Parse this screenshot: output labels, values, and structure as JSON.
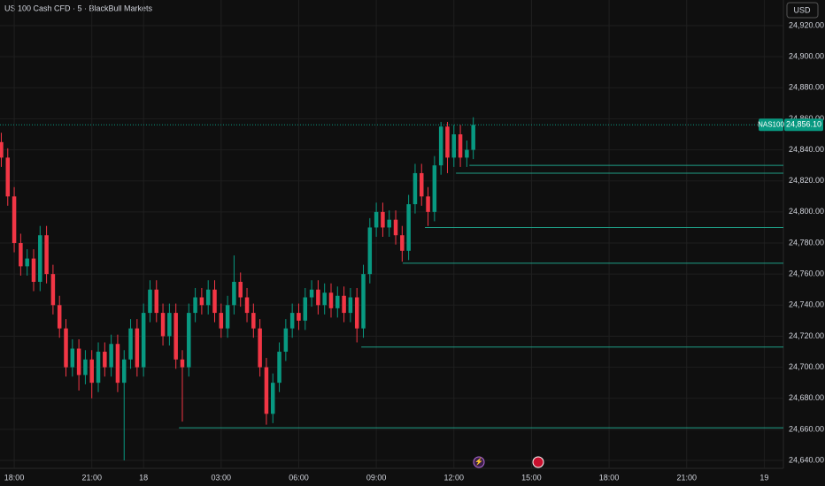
{
  "chart_data": {
    "type": "candlestick",
    "title": "US 100 Cash CFD · 5 · BlackBull Markets",
    "currency": "USD",
    "symbol_label": "NAS100",
    "last_price": {
      "value": 24856.1,
      "label": "24,856.10"
    },
    "up_color": "#089981",
    "down_color": "#f23645",
    "level_color": "#1f9e86",
    "grid": true,
    "xlim": [
      -0.55,
      29.74
    ],
    "xticks": [
      {
        "value": 0,
        "label": "18:00"
      },
      {
        "value": 3,
        "label": "21:00"
      },
      {
        "value": 5,
        "label": "18"
      },
      {
        "value": 8,
        "label": "03:00"
      },
      {
        "value": 11,
        "label": "06:00"
      },
      {
        "value": 14,
        "label": "09:00"
      },
      {
        "value": 17,
        "label": "12:00"
      },
      {
        "value": 20,
        "label": "15:00"
      },
      {
        "value": 23,
        "label": "18:00"
      },
      {
        "value": 26,
        "label": "21:00"
      },
      {
        "value": 29,
        "label": "19"
      }
    ],
    "ylim": [
      24634.9,
      24936.5
    ],
    "yticks": [
      {
        "value": 24640,
        "label": "24,640.00"
      },
      {
        "value": 24660,
        "label": "24,660.00"
      },
      {
        "value": 24680,
        "label": "24,680.00"
      },
      {
        "value": 24700,
        "label": "24,700.00"
      },
      {
        "value": 24720,
        "label": "24,720.00"
      },
      {
        "value": 24740,
        "label": "24,740.00"
      },
      {
        "value": 24760,
        "label": "24,760.00"
      },
      {
        "value": 24780,
        "label": "24,780.00"
      },
      {
        "value": 24800,
        "label": "24,800.00"
      },
      {
        "value": 24820,
        "label": "24,820.00"
      },
      {
        "value": 24840,
        "label": "24,840.00"
      },
      {
        "value": 24860,
        "label": "24,860.00"
      },
      {
        "value": 24880,
        "label": "24,880.00"
      },
      {
        "value": 24900,
        "label": "24,900.00"
      },
      {
        "value": 24920,
        "label": "24,920.00"
      }
    ],
    "x": [
      -0.5,
      -0.25,
      0,
      0.25,
      0.5,
      0.75,
      1,
      1.25,
      1.5,
      1.75,
      2,
      2.25,
      2.5,
      2.75,
      3,
      3.25,
      3.5,
      3.75,
      4,
      4.25,
      4.5,
      4.75,
      5,
      5.25,
      5.5,
      5.75,
      6,
      6.25,
      6.5,
      6.75,
      7,
      7.25,
      7.5,
      7.75,
      8,
      8.25,
      8.5,
      8.75,
      9,
      9.25,
      9.5,
      9.75,
      10,
      10.25,
      10.5,
      10.75,
      11,
      11.25,
      11.5,
      11.75,
      12,
      12.25,
      12.5,
      12.75,
      13,
      13.25,
      13.5,
      13.75,
      14,
      14.25,
      14.5,
      14.75,
      15,
      15.25,
      15.5,
      15.75,
      16,
      16.25,
      16.5,
      16.75,
      17,
      17.25,
      17.5,
      17.75
    ],
    "open": [
      24845,
      24835,
      24810,
      24780,
      24765,
      24770,
      24755,
      24785,
      24760,
      24740,
      24725,
      24700,
      24712,
      24695,
      24705,
      24690,
      24710,
      24700,
      24715,
      24690,
      24705,
      24725,
      24700,
      24735,
      24750,
      24735,
      24720,
      24735,
      24705,
      24700,
      24735,
      24745,
      24740,
      24750,
      24735,
      24725,
      24740,
      24755,
      24745,
      24735,
      24725,
      24700,
      24670,
      24690,
      24710,
      24725,
      24735,
      24730,
      24745,
      24750,
      24740,
      24748,
      24738,
      24746,
      24735,
      24745,
      24725,
      24760,
      24790,
      24800,
      24790,
      24795,
      24785,
      24775,
      24805,
      24825,
      24810,
      24800,
      24830,
      24855,
      24835,
      24850,
      24835,
      24840
    ],
    "high": [
      24851,
      24841,
      24816,
      24786,
      24776,
      24776,
      24791,
      24791,
      24766,
      24746,
      24731,
      24718,
      24718,
      24711,
      24711,
      24716,
      24716,
      24721,
      24721,
      24711,
      24731,
      24731,
      24741,
      24756,
      24756,
      24741,
      24741,
      24741,
      24711,
      24741,
      24751,
      24751,
      24756,
      24756,
      24741,
      24746,
      24772,
      24761,
      24751,
      24741,
      24731,
      24706,
      24696,
      24716,
      24731,
      24741,
      24741,
      24751,
      24756,
      24756,
      24754,
      24754,
      24752,
      24752,
      24751,
      24751,
      24766,
      24796,
      24806,
      24806,
      24801,
      24801,
      24791,
      24811,
      24831,
      24831,
      24816,
      24836,
      24858,
      24858,
      24856,
      24856,
      24846,
      24861
    ],
    "low": [
      24829,
      24804,
      24774,
      24759,
      24759,
      24749,
      24749,
      24754,
      24734,
      24719,
      24694,
      24694,
      24685,
      24689,
      24680,
      24684,
      24694,
      24694,
      24684,
      24640,
      24699,
      24694,
      24694,
      24729,
      24729,
      24714,
      24714,
      24699,
      24665,
      24694,
      24729,
      24734,
      24734,
      24729,
      24719,
      24719,
      24734,
      24739,
      24729,
      24719,
      24694,
      24663,
      24664,
      24684,
      24704,
      24719,
      24724,
      24724,
      24739,
      24734,
      24734,
      24732,
      24732,
      24729,
      24729,
      24716,
      24719,
      24754,
      24784,
      24784,
      24784,
      24779,
      24768,
      24769,
      24799,
      24804,
      24791,
      24794,
      24824,
      24825,
      24829,
      24829,
      24829,
      24834
    ],
    "close": [
      24835,
      24810,
      24780,
      24765,
      24770,
      24755,
      24785,
      24760,
      24740,
      24725,
      24700,
      24712,
      24695,
      24705,
      24690,
      24710,
      24700,
      24715,
      24690,
      24705,
      24725,
      24700,
      24735,
      24750,
      24735,
      24720,
      24735,
      24705,
      24700,
      24735,
      24745,
      24740,
      24750,
      24735,
      24725,
      24740,
      24755,
      24745,
      24735,
      24725,
      24700,
      24670,
      24690,
      24710,
      24725,
      24735,
      24730,
      24745,
      24750,
      24740,
      24748,
      24738,
      24746,
      24735,
      24745,
      24725,
      24760,
      24790,
      24800,
      24790,
      24795,
      24785,
      24775,
      24805,
      24825,
      24810,
      24800,
      24830,
      24855,
      24835,
      24850,
      24835,
      24840,
      24856.1
    ],
    "levels": [
      {
        "price": 24830,
        "from": 17.6
      },
      {
        "price": 24825,
        "from": 17.08
      },
      {
        "price": 24790,
        "from": 15.88
      },
      {
        "price": 24767,
        "from": 15.02
      },
      {
        "price": 24713,
        "from": 13.42
      },
      {
        "price": 24661,
        "from": 6.37
      }
    ]
  }
}
